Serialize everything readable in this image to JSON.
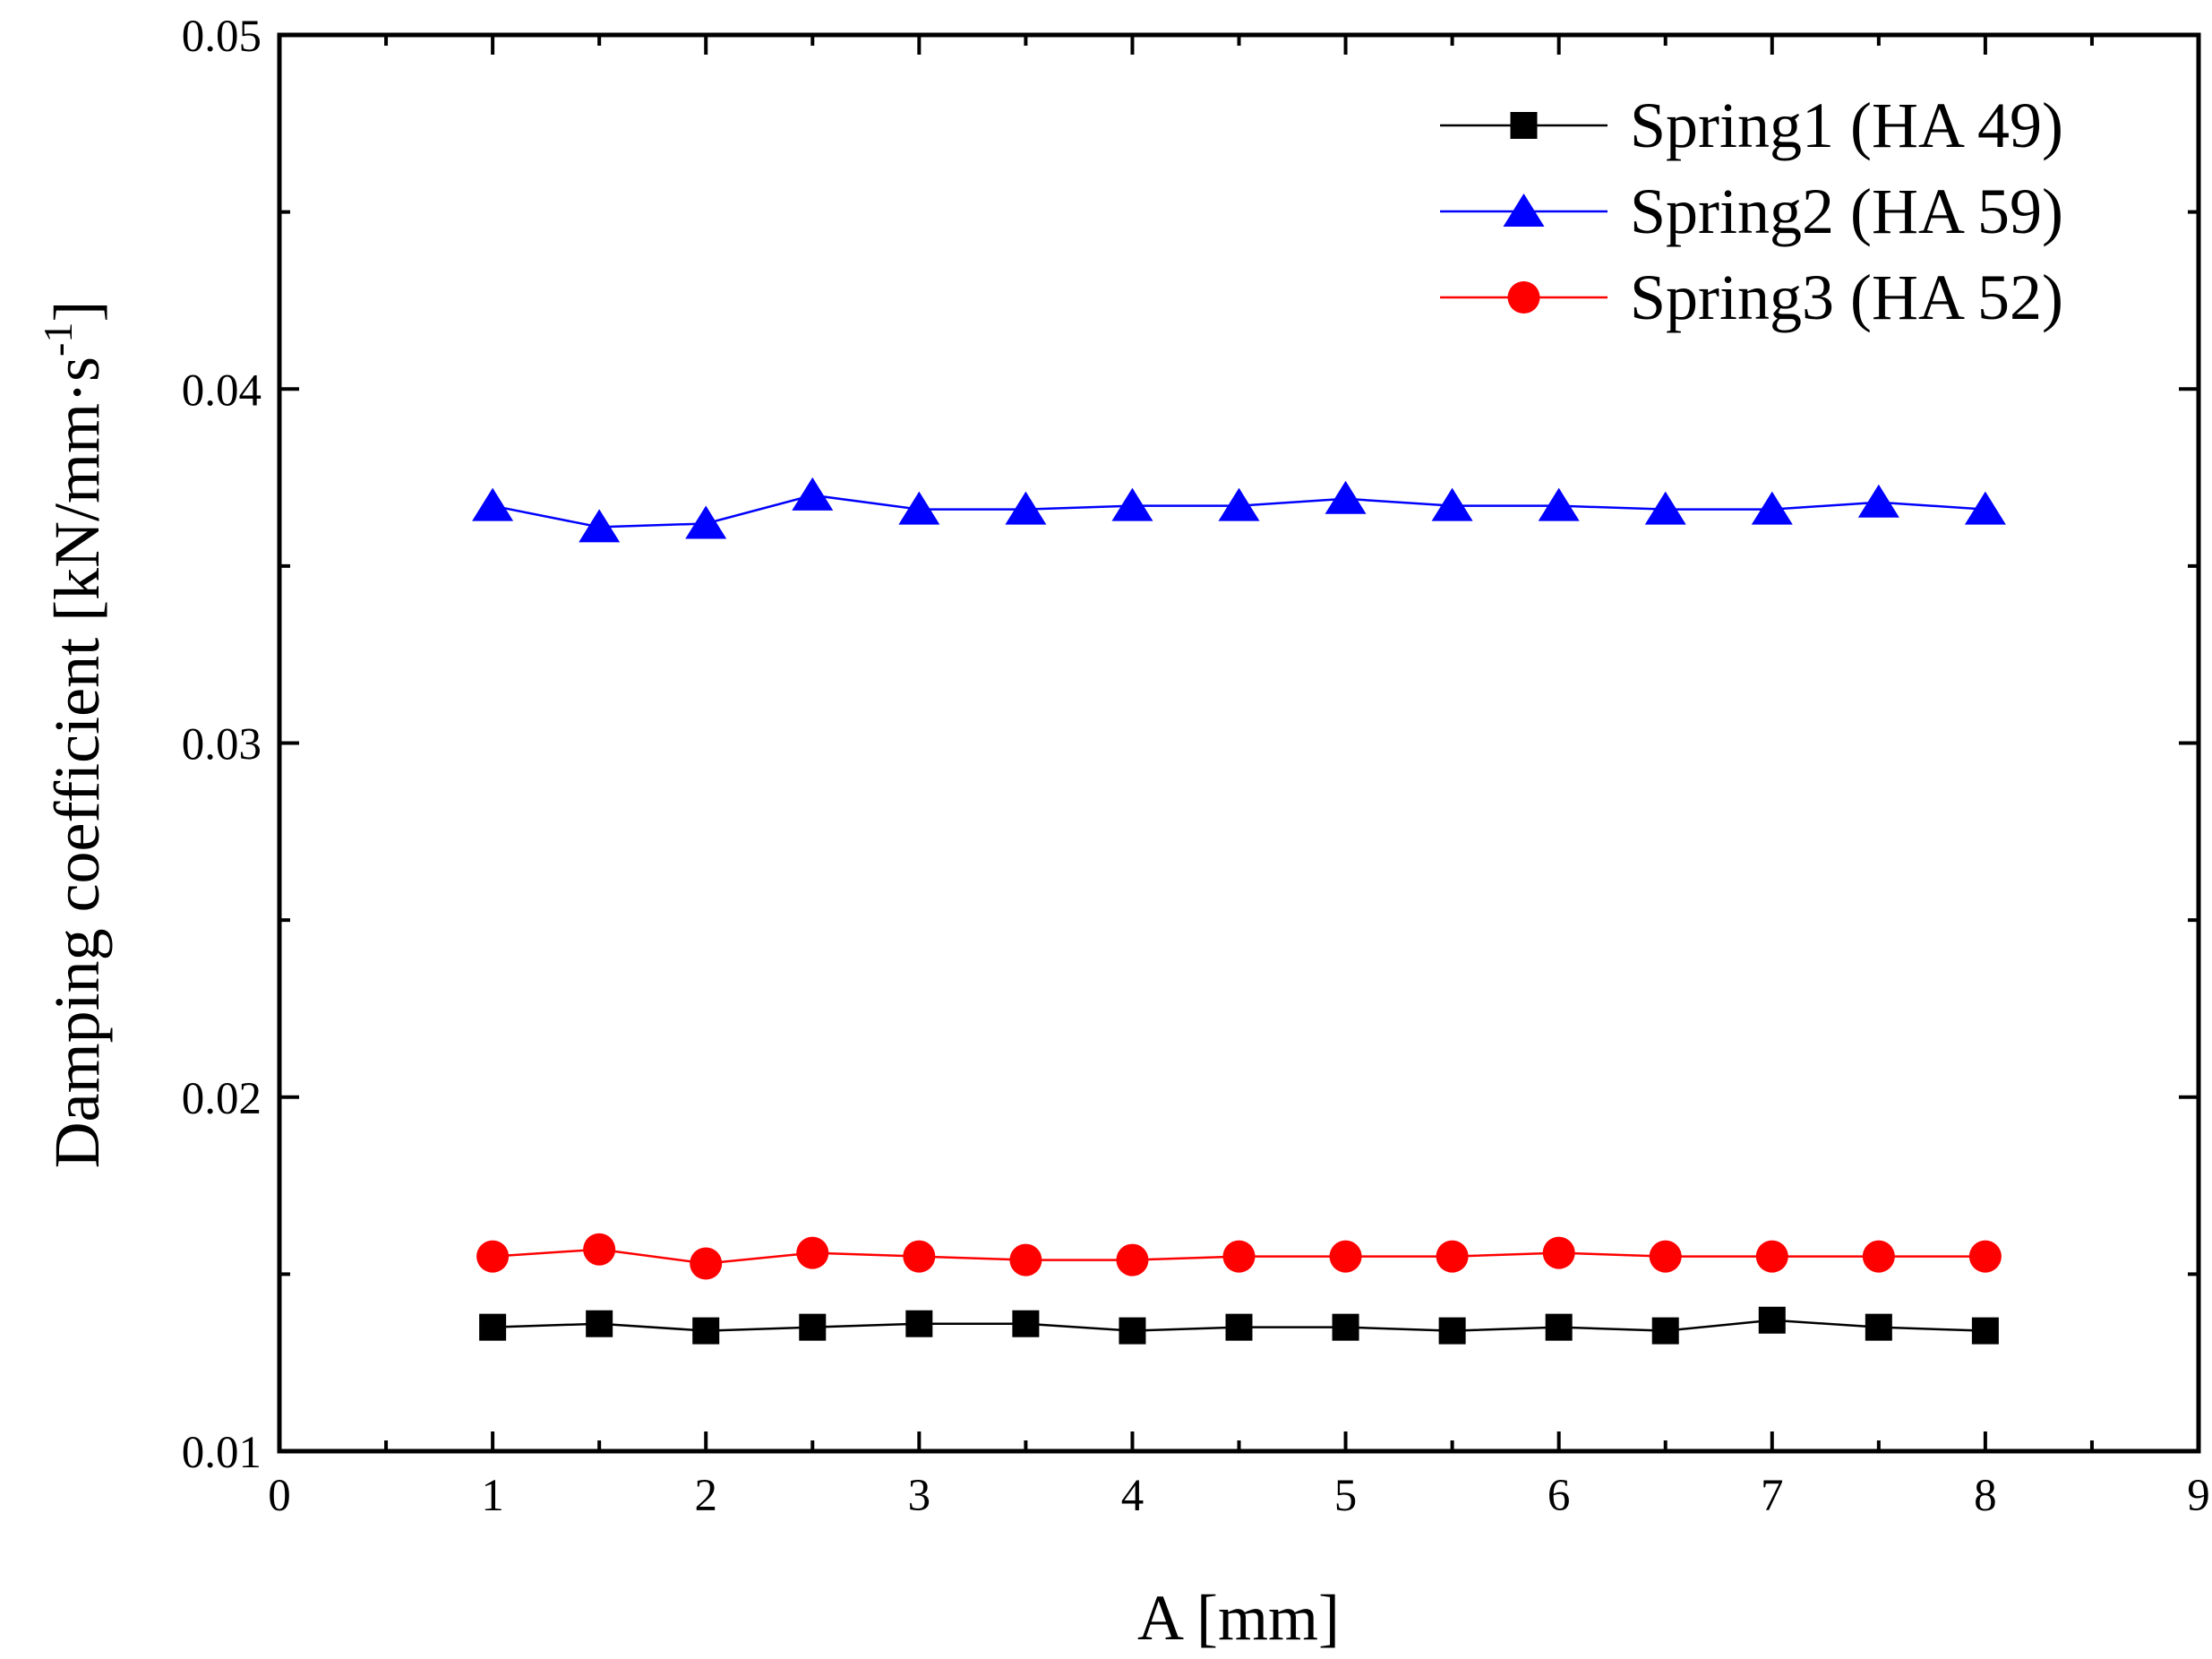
{
  "chart_data": {
    "type": "line",
    "title": "",
    "xlabel": "A [mm]",
    "ylabel_main": "Damping coefficient [kN/mm·s",
    "ylabel_sup": "-1",
    "ylabel_close": "]",
    "xlim": [
      0,
      9
    ],
    "ylim": [
      0.01,
      0.05
    ],
    "xticks": [
      0,
      1,
      2,
      3,
      4,
      5,
      6,
      7,
      8,
      9
    ],
    "xtick_labels": [
      "0",
      "1",
      "2",
      "3",
      "4",
      "5",
      "6",
      "7",
      "8",
      "9"
    ],
    "xminor": [
      0.5,
      1.5,
      2.5,
      3.5,
      4.5,
      5.5,
      6.5,
      7.5,
      8.5
    ],
    "yticks": [
      0.01,
      0.02,
      0.03,
      0.04,
      0.05
    ],
    "ytick_labels": [
      "0.01",
      "0.02",
      "0.03",
      "0.04",
      "0.05"
    ],
    "yminor": [
      0.015,
      0.025,
      0.035,
      0.045
    ],
    "grid": false,
    "legend_position": "top-right",
    "x": [
      1,
      1.5,
      2,
      2.5,
      3,
      3.5,
      4,
      4.5,
      5,
      5.5,
      6,
      6.5,
      7,
      7.5,
      8
    ],
    "series": [
      {
        "name": "Spring1 (HA 49)",
        "marker": "square",
        "color": "#000000",
        "values": [
          0.0135,
          0.0136,
          0.0134,
          0.0135,
          0.0136,
          0.0136,
          0.0134,
          0.0135,
          0.0135,
          0.0134,
          0.0135,
          0.0134,
          0.0137,
          0.0135,
          0.0134
        ]
      },
      {
        "name": "Spring2 (HA 59)",
        "marker": "triangle",
        "color": "#0000ff",
        "values": [
          0.0367,
          0.0361,
          0.0362,
          0.037,
          0.0366,
          0.0366,
          0.0367,
          0.0367,
          0.0369,
          0.0367,
          0.0367,
          0.0366,
          0.0366,
          0.0368,
          0.0366
        ]
      },
      {
        "name": "Spring3 (HA 52)",
        "marker": "circle",
        "color": "#ff0000",
        "values": [
          0.0155,
          0.0157,
          0.0153,
          0.0156,
          0.0155,
          0.0154,
          0.0154,
          0.0155,
          0.0155,
          0.0155,
          0.0156,
          0.0155,
          0.0155,
          0.0155,
          0.0155
        ]
      }
    ]
  }
}
